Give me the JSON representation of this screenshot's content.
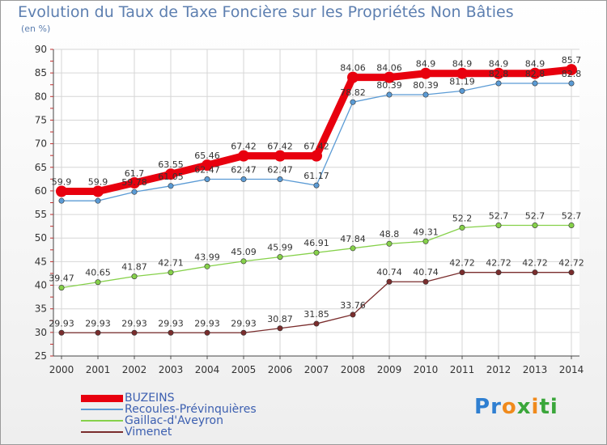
{
  "title": "Evolution du Taux de Taxe Foncière sur les Propriétés Non Bâties",
  "subtitle": "(en %)",
  "logo": {
    "text": "Proxiti",
    "letters": [
      "P",
      "r",
      "o",
      "x",
      "i",
      "t",
      "i"
    ],
    "colors": [
      "#2f7fd1",
      "#2f7fd1",
      "#f08a1c",
      "#3aa63a",
      "#f08a1c",
      "#3aa63a",
      "#3aa63a"
    ]
  },
  "chart_data": {
    "type": "line",
    "x": [
      "2000",
      "2001",
      "2002",
      "2003",
      "2004",
      "2005",
      "2006",
      "2007",
      "2008",
      "2009",
      "2010",
      "2011",
      "2012",
      "2013",
      "2014"
    ],
    "ylim": [
      25,
      90
    ],
    "yticks": [
      25,
      30,
      35,
      40,
      45,
      50,
      55,
      60,
      65,
      70,
      75,
      80,
      85,
      90
    ],
    "grid": true,
    "legend_position": "bottom-left",
    "series": [
      {
        "name": "BUZEINS",
        "color": "#e8000e",
        "values": [
          59.9,
          59.9,
          61.7,
          63.55,
          65.46,
          67.42,
          67.42,
          67.42,
          84.06,
          84.06,
          84.9,
          84.9,
          84.9,
          84.9,
          85.7
        ],
        "labels": [
          "59.9",
          "59.9",
          "61.7",
          "63.55",
          "65.46",
          "67.42",
          "67.42",
          "67.42",
          "84.06",
          "84.06",
          "84.9",
          "84.9",
          "84.9",
          "84.9",
          "85.7"
        ]
      },
      {
        "name": "Recoules-Prévinquières",
        "color": "#5b9bd5",
        "values": [
          57.9,
          57.9,
          59.78,
          61.05,
          62.47,
          62.47,
          62.47,
          61.17,
          78.82,
          80.39,
          80.39,
          81.19,
          82.8,
          82.8,
          82.8
        ],
        "labels": [
          "",
          "",
          "59.78",
          "61.05",
          "62.47",
          "62.47",
          "62.47",
          "61.17",
          "78.82",
          "80.39",
          "80.39",
          "81.19",
          "82.8",
          "82.8",
          "82.8"
        ]
      },
      {
        "name": "Gaillac-d'Aveyron",
        "color": "#86d14a",
        "values": [
          39.47,
          40.65,
          41.87,
          42.71,
          43.99,
          45.09,
          45.99,
          46.91,
          47.84,
          48.8,
          49.31,
          52.2,
          52.7,
          52.7,
          52.7
        ],
        "labels": [
          "39.47",
          "40.65",
          "41.87",
          "42.71",
          "43.99",
          "45.09",
          "45.99",
          "46.91",
          "47.84",
          "48.8",
          "49.31",
          "52.2",
          "52.7",
          "52.7",
          "52.7"
        ]
      },
      {
        "name": "Vimenet",
        "color": "#7a2d2d",
        "values": [
          29.93,
          29.93,
          29.93,
          29.93,
          29.93,
          29.93,
          30.87,
          31.85,
          33.76,
          40.74,
          40.74,
          42.72,
          42.72,
          42.72,
          42.72
        ],
        "labels": [
          "29.93",
          "29.93",
          "29.93",
          "29.93",
          "29.93",
          "29.93",
          "30.87",
          "31.85",
          "33.76",
          "40.74",
          "40.74",
          "42.72",
          "42.72",
          "42.72",
          "42.72"
        ]
      }
    ]
  }
}
